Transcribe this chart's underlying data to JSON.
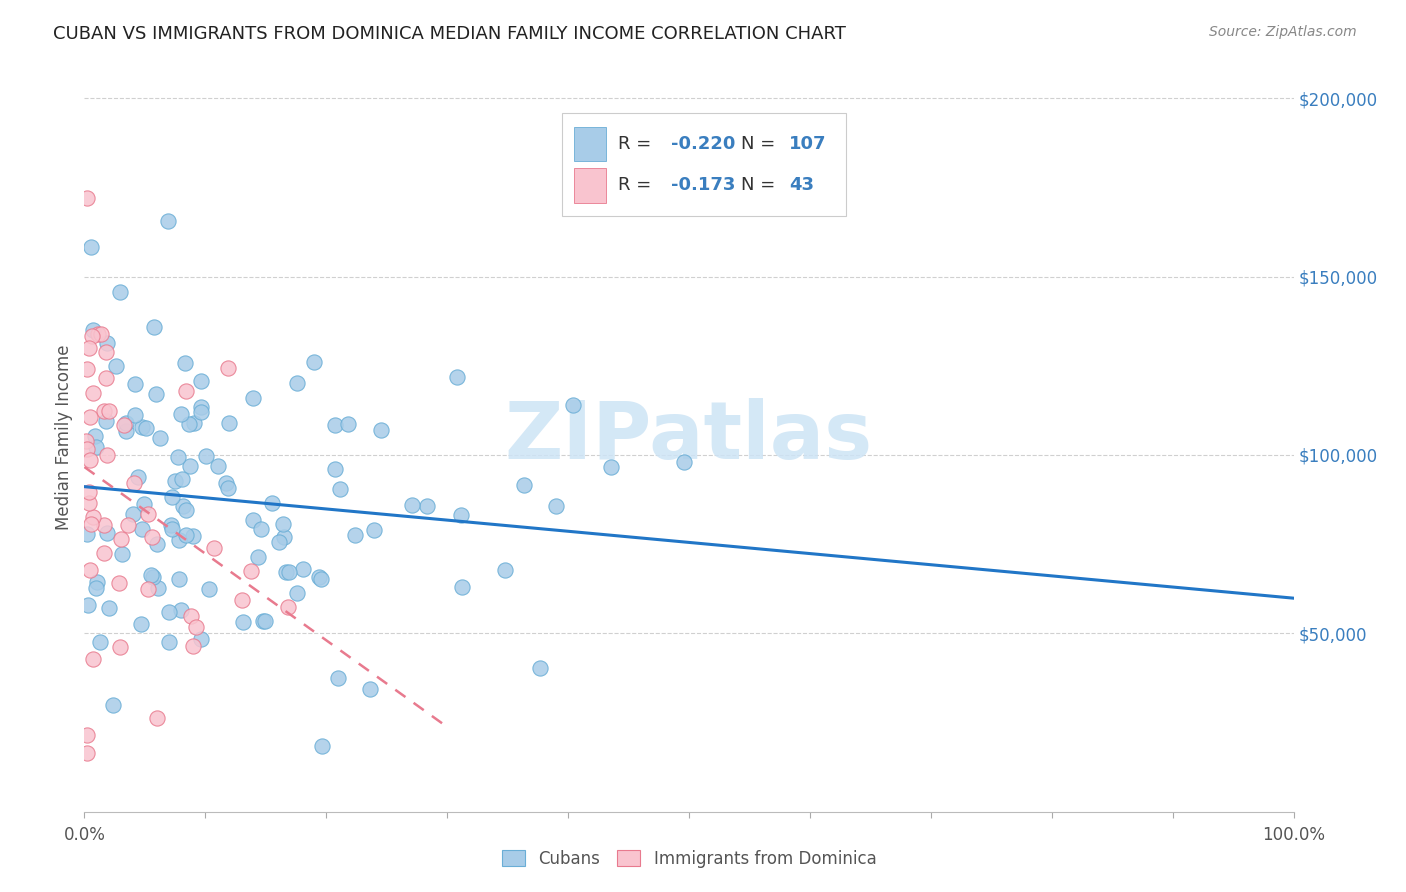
{
  "title": "CUBAN VS IMMIGRANTS FROM DOMINICA MEDIAN FAMILY INCOME CORRELATION CHART",
  "source": "Source: ZipAtlas.com",
  "ylabel": "Median Family Income",
  "xlim": [
    0,
    1
  ],
  "ylim": [
    0,
    210000
  ],
  "ytick_positions": [
    50000,
    100000,
    150000,
    200000
  ],
  "ytick_labels": [
    "$50,000",
    "$100,000",
    "$150,000",
    "$200,000"
  ],
  "xtick_positions": [
    0.0,
    0.1,
    0.2,
    0.3,
    0.4,
    0.5,
    0.6,
    0.7,
    0.8,
    0.9,
    1.0
  ],
  "xtick_labels": [
    "0.0%",
    "",
    "",
    "",
    "",
    "",
    "",
    "",
    "",
    "",
    "100.0%"
  ],
  "blue_scatter_color": "#a8cce8",
  "blue_scatter_edge": "#6aaed6",
  "pink_scatter_color": "#f9c4cf",
  "pink_scatter_edge": "#e87a8e",
  "blue_line_color": "#2176c7",
  "pink_line_color": "#e87a8e",
  "text_color": "#3a7ebf",
  "label_color": "#555555",
  "grid_color": "#d0d0d0",
  "watermark_color": "#cde4f5",
  "R_cubans": -0.22,
  "N_cubans": 107,
  "R_dominica": -0.173,
  "N_dominica": 43
}
